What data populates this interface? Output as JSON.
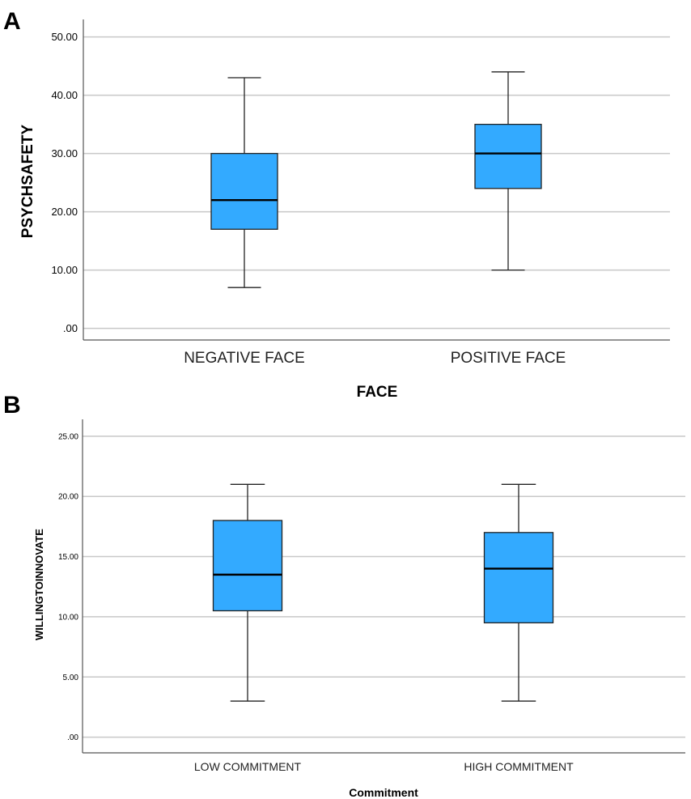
{
  "colors": {
    "box_fill": "#33aaff",
    "box_stroke": "#222222",
    "grid": "#c8c8c8",
    "axis": "#555555"
  },
  "chart_data": [
    {
      "panel": "A",
      "type": "boxplot",
      "xlabel": "FACE",
      "ylabel": "PSYCHSAFETY",
      "ylim": [
        -2,
        53
      ],
      "yticks": [
        0,
        10,
        20,
        30,
        40,
        50
      ],
      "ytick_labels": [
        ".00",
        "10.00",
        "20.00",
        "30.00",
        "40.00",
        "50.00"
      ],
      "categories": [
        "NEGATIVE FACE",
        "POSITIVE FACE"
      ],
      "boxes": [
        {
          "min": 7,
          "q1": 17,
          "median": 22,
          "q3": 30,
          "max": 43
        },
        {
          "min": 10,
          "q1": 24,
          "median": 30,
          "q3": 35,
          "max": 44
        }
      ]
    },
    {
      "panel": "B",
      "type": "boxplot",
      "xlabel": "Commitment",
      "ylabel": "WILLINGTOINNOVATE",
      "ylim": [
        -1.3,
        26.4
      ],
      "yticks": [
        0,
        5,
        10,
        15,
        20,
        25
      ],
      "ytick_labels": [
        ".00",
        "5.00",
        "10.00",
        "15.00",
        "20.00",
        "25.00"
      ],
      "categories": [
        "LOW COMMITMENT",
        "HIGH COMMITMENT"
      ],
      "boxes": [
        {
          "min": 3,
          "q1": 10.5,
          "median": 13.5,
          "q3": 18,
          "max": 21
        },
        {
          "min": 3,
          "q1": 9.5,
          "median": 14,
          "q3": 17,
          "max": 21
        }
      ]
    }
  ]
}
